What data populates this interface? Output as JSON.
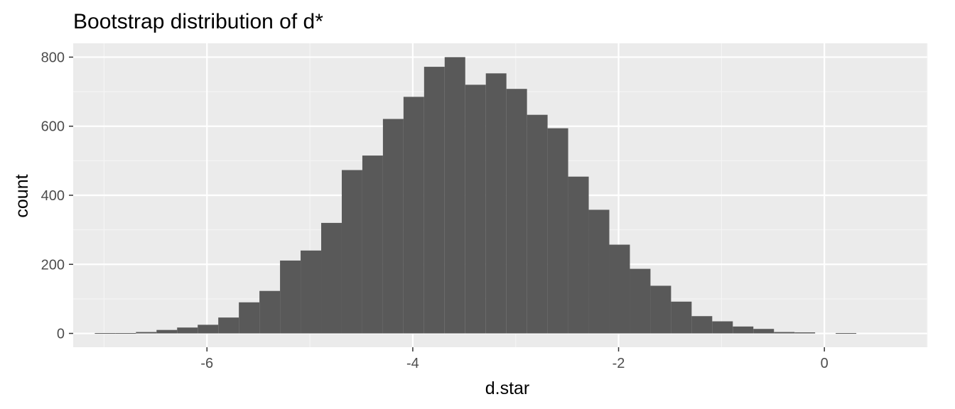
{
  "chart_data": {
    "type": "histogram",
    "title": "Bootstrap distribution of d*",
    "xlabel": "d.star",
    "ylabel": "count",
    "xlim": [
      -7.3,
      1.0
    ],
    "ylim": [
      -40,
      840
    ],
    "x_ticks": [
      -6,
      -4,
      -2,
      0
    ],
    "x_tick_labels": [
      "-6",
      "-4",
      "-2",
      "0"
    ],
    "y_ticks": [
      0,
      200,
      400,
      600,
      800
    ],
    "y_tick_labels": [
      "0",
      "200",
      "400",
      "600",
      "800"
    ],
    "x_minor_ticks": [
      -7,
      -5,
      -3,
      -1,
      1
    ],
    "y_minor_ticks": [
      100,
      300,
      500,
      700
    ],
    "bin_width": 0.2,
    "bins": [
      {
        "x_start": -7.09,
        "count": 1
      },
      {
        "x_start": -6.89,
        "count": 1
      },
      {
        "x_start": -6.69,
        "count": 4
      },
      {
        "x_start": -6.49,
        "count": 10
      },
      {
        "x_start": -6.29,
        "count": 17
      },
      {
        "x_start": -6.09,
        "count": 25
      },
      {
        "x_start": -5.89,
        "count": 46
      },
      {
        "x_start": -5.69,
        "count": 90
      },
      {
        "x_start": -5.49,
        "count": 123
      },
      {
        "x_start": -5.29,
        "count": 211
      },
      {
        "x_start": -5.09,
        "count": 240
      },
      {
        "x_start": -4.89,
        "count": 320
      },
      {
        "x_start": -4.69,
        "count": 473
      },
      {
        "x_start": -4.49,
        "count": 515
      },
      {
        "x_start": -4.29,
        "count": 621
      },
      {
        "x_start": -4.09,
        "count": 685
      },
      {
        "x_start": -3.89,
        "count": 772
      },
      {
        "x_start": -3.69,
        "count": 800
      },
      {
        "x_start": -3.49,
        "count": 720
      },
      {
        "x_start": -3.29,
        "count": 753
      },
      {
        "x_start": -3.09,
        "count": 708
      },
      {
        "x_start": -2.89,
        "count": 633
      },
      {
        "x_start": -2.69,
        "count": 594
      },
      {
        "x_start": -2.49,
        "count": 454
      },
      {
        "x_start": -2.29,
        "count": 358
      },
      {
        "x_start": -2.09,
        "count": 257
      },
      {
        "x_start": -1.89,
        "count": 187
      },
      {
        "x_start": -1.69,
        "count": 138
      },
      {
        "x_start": -1.49,
        "count": 92
      },
      {
        "x_start": -1.29,
        "count": 50
      },
      {
        "x_start": -1.09,
        "count": 35
      },
      {
        "x_start": -0.89,
        "count": 20
      },
      {
        "x_start": -0.69,
        "count": 13
      },
      {
        "x_start": -0.49,
        "count": 4
      },
      {
        "x_start": -0.29,
        "count": 3
      },
      {
        "x_start": -0.09,
        "count": 0
      },
      {
        "x_start": 0.11,
        "count": 1
      }
    ],
    "grid": true,
    "legend": "none",
    "colors": {
      "panel_background": "#EBEBEB",
      "grid_major": "#FFFFFF",
      "grid_minor": "#F5F5F5",
      "bar_fill": "#595959",
      "tick_color": "#333333",
      "tick_label_color": "#4D4D4D",
      "text_color": "#000000"
    }
  }
}
